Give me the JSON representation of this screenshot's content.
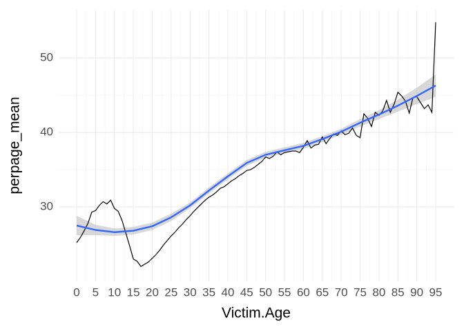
{
  "chart_data": {
    "type": "line",
    "x_label": "Victim.Age",
    "y_label": "perpage_mean",
    "x": [
      0,
      1,
      2,
      3,
      4,
      5,
      6,
      7,
      8,
      9,
      10,
      11,
      12,
      13,
      14,
      15,
      16,
      17,
      18,
      19,
      20,
      21,
      22,
      23,
      24,
      25,
      26,
      27,
      28,
      29,
      30,
      31,
      32,
      33,
      34,
      35,
      36,
      37,
      38,
      39,
      40,
      41,
      42,
      43,
      44,
      45,
      46,
      47,
      48,
      49,
      50,
      51,
      52,
      53,
      54,
      55,
      56,
      57,
      58,
      59,
      60,
      61,
      62,
      63,
      64,
      65,
      66,
      67,
      68,
      69,
      70,
      71,
      72,
      73,
      74,
      75,
      76,
      77,
      78,
      79,
      80,
      81,
      82,
      83,
      84,
      85,
      86,
      87,
      88,
      89,
      90,
      91,
      92,
      93,
      94,
      95
    ],
    "series": [
      {
        "color": "#000000",
        "values": [
          25.2,
          25.9,
          26.8,
          27.8,
          29.3,
          29.5,
          30.2,
          30.7,
          30.4,
          30.9,
          29.8,
          29.4,
          28.2,
          26.5,
          24.8,
          23.0,
          22.7,
          22.0,
          22.3,
          22.6,
          23.1,
          23.6,
          24.2,
          24.9,
          25.5,
          26.1,
          26.6,
          27.2,
          27.7,
          28.3,
          28.8,
          29.4,
          29.9,
          30.4,
          30.9,
          31.3,
          31.6,
          32.0,
          32.5,
          32.7,
          33.1,
          33.5,
          33.8,
          34.2,
          34.5,
          34.9,
          35.0,
          35.3,
          35.7,
          36.1,
          36.7,
          36.5,
          36.8,
          37.4,
          37.0,
          37.3,
          37.4,
          37.5,
          37.5,
          37.3,
          38.0,
          38.9,
          37.9,
          38.3,
          38.4,
          39.4,
          38.5,
          39.2,
          39.8,
          39.6,
          40.2,
          39.7,
          39.9,
          40.6,
          39.6,
          39.3,
          42.5,
          41.9,
          40.8,
          42.7,
          42.3,
          42.9,
          44.3,
          42.7,
          43.8,
          45.4,
          44.9,
          44.2,
          42.6,
          44.7,
          44.8,
          44.0,
          43.2,
          43.7,
          42.7,
          54.8
        ]
      }
    ],
    "smooth": {
      "color": "#3366ff",
      "band_color": "#bebebe",
      "x": [
        0,
        5,
        10,
        15,
        20,
        25,
        30,
        35,
        40,
        45,
        50,
        55,
        60,
        65,
        70,
        75,
        80,
        85,
        90,
        95
      ],
      "values": [
        27.5,
        26.9,
        26.6,
        26.8,
        27.4,
        28.6,
        30.2,
        32.2,
        34.1,
        35.9,
        37.0,
        37.6,
        38.2,
        39.1,
        40.1,
        41.3,
        42.4,
        43.6,
        44.9,
        46.3
      ],
      "lower": [
        26.2,
        26.2,
        26.1,
        26.3,
        26.9,
        28.1,
        29.8,
        31.8,
        33.7,
        35.5,
        36.6,
        37.2,
        37.8,
        38.7,
        39.7,
        40.8,
        41.8,
        42.8,
        43.8,
        44.8
      ],
      "upper": [
        28.8,
        27.6,
        27.1,
        27.3,
        27.9,
        29.1,
        30.6,
        32.6,
        34.5,
        36.3,
        37.4,
        38.0,
        38.6,
        39.5,
        40.5,
        41.8,
        43.0,
        44.4,
        46.0,
        47.8
      ]
    },
    "xlim": [
      -4.75,
      99.75
    ],
    "ylim": [
      20,
      56.4
    ],
    "xticks": [
      0,
      5,
      10,
      15,
      20,
      25,
      30,
      35,
      40,
      45,
      50,
      55,
      60,
      65,
      70,
      75,
      80,
      85,
      90,
      95
    ],
    "yticks": [
      30,
      40,
      50
    ],
    "grid": true
  }
}
